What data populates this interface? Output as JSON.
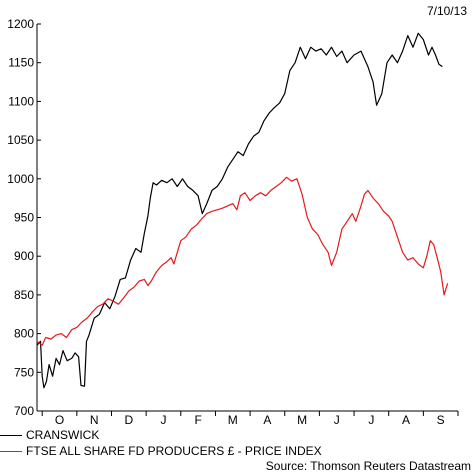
{
  "date_stamp": "7/10/13",
  "source_label": "Source: Thomson Reuters Datastream",
  "chart_data": {
    "type": "line",
    "title": "",
    "xlabel": "",
    "ylabel": "",
    "ylim": [
      700,
      1200
    ],
    "y_ticks": [
      700,
      750,
      800,
      850,
      900,
      950,
      1000,
      1050,
      1100,
      1150,
      1200
    ],
    "x_months": [
      "O",
      "N",
      "D",
      "J",
      "F",
      "M",
      "A",
      "M",
      "J",
      "J",
      "A",
      "S"
    ],
    "x_range_months": [
      -0.15,
      12.0
    ],
    "grid": false,
    "legend_position": "bottom-left",
    "series": [
      {
        "name": "CRANSWICK",
        "color": "#000000",
        "points": [
          [
            -0.15,
            785
          ],
          [
            -0.05,
            790
          ],
          [
            0.0,
            745
          ],
          [
            0.05,
            730
          ],
          [
            0.12,
            738
          ],
          [
            0.2,
            760
          ],
          [
            0.3,
            745
          ],
          [
            0.4,
            768
          ],
          [
            0.5,
            760
          ],
          [
            0.6,
            778
          ],
          [
            0.72,
            765
          ],
          [
            0.85,
            768
          ],
          [
            0.95,
            775
          ],
          [
            1.05,
            770
          ],
          [
            1.12,
            733
          ],
          [
            1.22,
            732
          ],
          [
            1.28,
            790
          ],
          [
            1.35,
            798
          ],
          [
            1.5,
            820
          ],
          [
            1.65,
            825
          ],
          [
            1.8,
            840
          ],
          [
            1.95,
            832
          ],
          [
            2.1,
            848
          ],
          [
            2.25,
            870
          ],
          [
            2.4,
            872
          ],
          [
            2.55,
            895
          ],
          [
            2.7,
            910
          ],
          [
            2.85,
            905
          ],
          [
            2.95,
            930
          ],
          [
            3.05,
            952
          ],
          [
            3.12,
            975
          ],
          [
            3.2,
            995
          ],
          [
            3.3,
            992
          ],
          [
            3.45,
            998
          ],
          [
            3.6,
            995
          ],
          [
            3.75,
            1000
          ],
          [
            3.9,
            990
          ],
          [
            4.05,
            1000
          ],
          [
            4.2,
            990
          ],
          [
            4.35,
            985
          ],
          [
            4.5,
            978
          ],
          [
            4.62,
            955
          ],
          [
            4.75,
            968
          ],
          [
            4.9,
            985
          ],
          [
            5.05,
            990
          ],
          [
            5.2,
            1000
          ],
          [
            5.35,
            1015
          ],
          [
            5.5,
            1025
          ],
          [
            5.65,
            1035
          ],
          [
            5.8,
            1030
          ],
          [
            5.95,
            1045
          ],
          [
            6.1,
            1055
          ],
          [
            6.25,
            1060
          ],
          [
            6.4,
            1075
          ],
          [
            6.55,
            1085
          ],
          [
            6.7,
            1092
          ],
          [
            6.85,
            1098
          ],
          [
            7.0,
            1110
          ],
          [
            7.15,
            1140
          ],
          [
            7.3,
            1150
          ],
          [
            7.45,
            1170
          ],
          [
            7.6,
            1155
          ],
          [
            7.75,
            1170
          ],
          [
            7.9,
            1165
          ],
          [
            8.05,
            1168
          ],
          [
            8.2,
            1160
          ],
          [
            8.35,
            1170
          ],
          [
            8.5,
            1158
          ],
          [
            8.65,
            1165
          ],
          [
            8.8,
            1150
          ],
          [
            9.0,
            1160
          ],
          [
            9.2,
            1165
          ],
          [
            9.4,
            1145
          ],
          [
            9.55,
            1125
          ],
          [
            9.65,
            1095
          ],
          [
            9.8,
            1110
          ],
          [
            9.95,
            1150
          ],
          [
            10.1,
            1160
          ],
          [
            10.25,
            1150
          ],
          [
            10.4,
            1165
          ],
          [
            10.55,
            1185
          ],
          [
            10.7,
            1170
          ],
          [
            10.85,
            1188
          ],
          [
            11.0,
            1180
          ],
          [
            11.15,
            1160
          ],
          [
            11.25,
            1170
          ],
          [
            11.35,
            1160
          ],
          [
            11.45,
            1148
          ],
          [
            11.55,
            1145
          ]
        ]
      },
      {
        "name": "FTSE ALL SHARE FD PRODUCERS £ - PRICE INDEX",
        "color": "#e41a1c",
        "points": [
          [
            -0.15,
            790
          ],
          [
            0.0,
            785
          ],
          [
            0.1,
            795
          ],
          [
            0.25,
            793
          ],
          [
            0.4,
            798
          ],
          [
            0.55,
            800
          ],
          [
            0.7,
            795
          ],
          [
            0.85,
            805
          ],
          [
            1.0,
            808
          ],
          [
            1.15,
            815
          ],
          [
            1.3,
            820
          ],
          [
            1.45,
            828
          ],
          [
            1.6,
            835
          ],
          [
            1.75,
            838
          ],
          [
            1.9,
            845
          ],
          [
            2.05,
            842
          ],
          [
            2.2,
            838
          ],
          [
            2.35,
            846
          ],
          [
            2.5,
            855
          ],
          [
            2.65,
            860
          ],
          [
            2.8,
            868
          ],
          [
            2.95,
            870
          ],
          [
            3.05,
            862
          ],
          [
            3.15,
            868
          ],
          [
            3.3,
            880
          ],
          [
            3.45,
            888
          ],
          [
            3.6,
            893
          ],
          [
            3.72,
            898
          ],
          [
            3.8,
            890
          ],
          [
            3.9,
            905
          ],
          [
            4.0,
            920
          ],
          [
            4.15,
            925
          ],
          [
            4.3,
            935
          ],
          [
            4.45,
            940
          ],
          [
            4.6,
            948
          ],
          [
            4.75,
            955
          ],
          [
            4.9,
            958
          ],
          [
            5.05,
            960
          ],
          [
            5.2,
            962
          ],
          [
            5.35,
            965
          ],
          [
            5.5,
            968
          ],
          [
            5.62,
            960
          ],
          [
            5.72,
            978
          ],
          [
            5.85,
            982
          ],
          [
            6.0,
            972
          ],
          [
            6.15,
            978
          ],
          [
            6.3,
            982
          ],
          [
            6.45,
            978
          ],
          [
            6.6,
            985
          ],
          [
            6.75,
            990
          ],
          [
            6.9,
            995
          ],
          [
            7.05,
            1002
          ],
          [
            7.2,
            997
          ],
          [
            7.35,
            1000
          ],
          [
            7.5,
            980
          ],
          [
            7.65,
            950
          ],
          [
            7.8,
            935
          ],
          [
            7.95,
            928
          ],
          [
            8.1,
            915
          ],
          [
            8.25,
            905
          ],
          [
            8.35,
            888
          ],
          [
            8.5,
            905
          ],
          [
            8.65,
            935
          ],
          [
            8.8,
            945
          ],
          [
            8.95,
            955
          ],
          [
            9.05,
            945
          ],
          [
            9.2,
            965
          ],
          [
            9.3,
            980
          ],
          [
            9.4,
            985
          ],
          [
            9.55,
            975
          ],
          [
            9.7,
            968
          ],
          [
            9.85,
            958
          ],
          [
            10.0,
            952
          ],
          [
            10.1,
            945
          ],
          [
            10.25,
            925
          ],
          [
            10.4,
            905
          ],
          [
            10.55,
            895
          ],
          [
            10.7,
            898
          ],
          [
            10.85,
            890
          ],
          [
            11.0,
            885
          ],
          [
            11.1,
            900
          ],
          [
            11.2,
            920
          ],
          [
            11.3,
            915
          ],
          [
            11.4,
            898
          ],
          [
            11.5,
            880
          ],
          [
            11.6,
            850
          ],
          [
            11.7,
            865
          ]
        ]
      }
    ]
  }
}
